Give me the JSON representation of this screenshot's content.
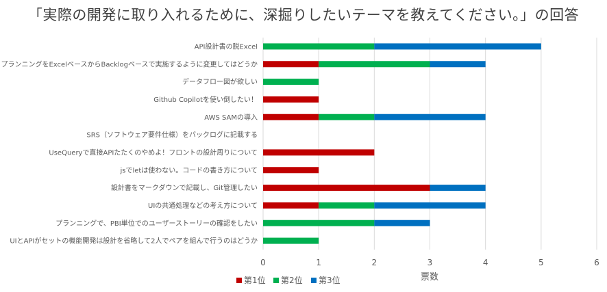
{
  "chart_data": {
    "type": "bar",
    "orientation": "horizontal",
    "stacked": true,
    "title": "「実際の開発に取り入れるために、深掘りしたいテーマを教えてください。」の回答",
    "xlabel": "票数",
    "ylabel": "",
    "xlim": [
      0,
      6
    ],
    "xticks": [
      "0",
      "1",
      "2",
      "3",
      "4",
      "5",
      "6"
    ],
    "grid": true,
    "legend_position": "bottom",
    "categories": [
      "API設計書の脱Excel",
      "プランニングをExcelベースからBacklogベースで実施するように変更してはどうか",
      "データフロー図が欲しい",
      "Github Copilotを使い倒したい！",
      "AWS SAMの導入",
      "SRS（ソフトウェア要件仕様）をバックログに記載する",
      "UseQueryで直接APIたたくのやめよ！フロントの設計周りについて",
      "jsでletは使わない。コードの書き方について",
      "設計書をマークダウンで記載し、Git管理したい",
      "UIの共通処理などの考え方について",
      "プランニングで、PBI単位でのユーザーストーリーの確認をしたい",
      "UIとAPIがセットの機能開発は設計を省略して2人でペアを組んで行うのはどうか"
    ],
    "series": [
      {
        "name": "第1位",
        "color": "#C00000",
        "values": [
          0,
          1,
          0,
          1,
          1,
          0,
          2,
          1,
          3,
          1,
          0,
          0
        ]
      },
      {
        "name": "第2位",
        "color": "#00B050",
        "values": [
          2,
          2,
          1,
          0,
          1,
          0,
          0,
          0,
          0,
          1,
          2,
          1
        ]
      },
      {
        "name": "第3位",
        "color": "#0070C0",
        "values": [
          3,
          1,
          0,
          0,
          2,
          0,
          0,
          0,
          1,
          2,
          1,
          0
        ]
      }
    ]
  }
}
